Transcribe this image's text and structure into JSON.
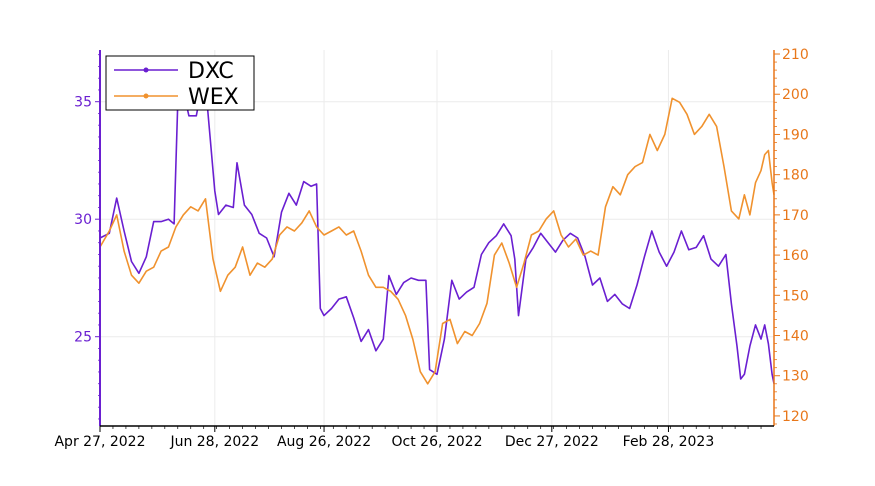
{
  "chart_data": {
    "type": "line",
    "title": "",
    "xlabel": "",
    "x_tick_labels": [
      "Apr 27, 2022",
      "Jun 28, 2022",
      "Aug 26, 2022",
      "Oct 26, 2022",
      "Dec 27, 2022",
      "Feb 28, 2023"
    ],
    "x_tick_dates": [
      "2022-04-27",
      "2022-06-28",
      "2022-08-26",
      "2022-10-26",
      "2022-12-27",
      "2023-02-28"
    ],
    "x_range": [
      "2022-04-27",
      "2023-04-26"
    ],
    "y_left": {
      "label": "",
      "lim": [
        21.2,
        37.2
      ],
      "ticks": [
        25,
        30,
        35
      ],
      "color": "#6a1fd1"
    },
    "y_right": {
      "label": "",
      "lim": [
        117.5,
        211
      ],
      "ticks": [
        120,
        130,
        140,
        150,
        160,
        170,
        180,
        190,
        200,
        210
      ],
      "color": "#e8771a"
    },
    "grid": true,
    "legend_position": "top-left",
    "series": [
      {
        "name": "DXC",
        "axis": "left",
        "color": "#6a1fd1",
        "points": [
          [
            "2022-04-27",
            29.2
          ],
          [
            "2022-05-02",
            29.4
          ],
          [
            "2022-05-06",
            30.9
          ],
          [
            "2022-05-10",
            29.5
          ],
          [
            "2022-05-14",
            28.2
          ],
          [
            "2022-05-18",
            27.7
          ],
          [
            "2022-05-22",
            28.4
          ],
          [
            "2022-05-26",
            29.9
          ],
          [
            "2022-05-30",
            29.9
          ],
          [
            "2022-06-03",
            30.0
          ],
          [
            "2022-06-06",
            29.8
          ],
          [
            "2022-06-08",
            35.0
          ],
          [
            "2022-06-10",
            35.8
          ],
          [
            "2022-06-14",
            34.4
          ],
          [
            "2022-06-18",
            34.4
          ],
          [
            "2022-06-21",
            35.6
          ],
          [
            "2022-06-24",
            34.8
          ],
          [
            "2022-06-28",
            31.2
          ],
          [
            "2022-06-30",
            30.2
          ],
          [
            "2022-07-04",
            30.6
          ],
          [
            "2022-07-08",
            30.5
          ],
          [
            "2022-07-10",
            32.4
          ],
          [
            "2022-07-14",
            30.6
          ],
          [
            "2022-07-18",
            30.2
          ],
          [
            "2022-07-22",
            29.4
          ],
          [
            "2022-07-26",
            29.2
          ],
          [
            "2022-07-30",
            28.4
          ],
          [
            "2022-08-03",
            30.3
          ],
          [
            "2022-08-07",
            31.1
          ],
          [
            "2022-08-11",
            30.6
          ],
          [
            "2022-08-15",
            31.6
          ],
          [
            "2022-08-19",
            31.4
          ],
          [
            "2022-08-22",
            31.5
          ],
          [
            "2022-08-24",
            26.2
          ],
          [
            "2022-08-26",
            25.9
          ],
          [
            "2022-08-30",
            26.2
          ],
          [
            "2022-09-03",
            26.6
          ],
          [
            "2022-09-07",
            26.7
          ],
          [
            "2022-09-11",
            25.8
          ],
          [
            "2022-09-15",
            24.8
          ],
          [
            "2022-09-19",
            25.3
          ],
          [
            "2022-09-23",
            24.4
          ],
          [
            "2022-09-27",
            24.9
          ],
          [
            "2022-09-30",
            27.6
          ],
          [
            "2022-10-04",
            26.8
          ],
          [
            "2022-10-08",
            27.3
          ],
          [
            "2022-10-12",
            27.5
          ],
          [
            "2022-10-16",
            27.4
          ],
          [
            "2022-10-20",
            27.4
          ],
          [
            "2022-10-22",
            23.6
          ],
          [
            "2022-10-26",
            23.4
          ],
          [
            "2022-10-30",
            24.9
          ],
          [
            "2022-11-03",
            27.4
          ],
          [
            "2022-11-07",
            26.6
          ],
          [
            "2022-11-11",
            26.9
          ],
          [
            "2022-11-15",
            27.1
          ],
          [
            "2022-11-19",
            28.5
          ],
          [
            "2022-11-23",
            29.0
          ],
          [
            "2022-11-27",
            29.3
          ],
          [
            "2022-12-01",
            29.8
          ],
          [
            "2022-12-05",
            29.3
          ],
          [
            "2022-12-07",
            28.3
          ],
          [
            "2022-12-09",
            25.9
          ],
          [
            "2022-12-13",
            28.3
          ],
          [
            "2022-12-17",
            28.8
          ],
          [
            "2022-12-21",
            29.4
          ],
          [
            "2022-12-25",
            29.0
          ],
          [
            "2022-12-29",
            28.6
          ],
          [
            "2023-01-02",
            29.1
          ],
          [
            "2023-01-06",
            29.4
          ],
          [
            "2023-01-10",
            29.2
          ],
          [
            "2023-01-14",
            28.4
          ],
          [
            "2023-01-18",
            27.2
          ],
          [
            "2023-01-22",
            27.5
          ],
          [
            "2023-01-26",
            26.5
          ],
          [
            "2023-01-30",
            26.8
          ],
          [
            "2023-02-03",
            26.4
          ],
          [
            "2023-02-07",
            26.2
          ],
          [
            "2023-02-11",
            27.2
          ],
          [
            "2023-02-15",
            28.4
          ],
          [
            "2023-02-19",
            29.5
          ],
          [
            "2023-02-23",
            28.6
          ],
          [
            "2023-02-27",
            28.0
          ],
          [
            "2023-03-03",
            28.6
          ],
          [
            "2023-03-07",
            29.5
          ],
          [
            "2023-03-11",
            28.7
          ],
          [
            "2023-03-15",
            28.8
          ],
          [
            "2023-03-19",
            29.3
          ],
          [
            "2023-03-23",
            28.3
          ],
          [
            "2023-03-27",
            28.0
          ],
          [
            "2023-03-31",
            28.5
          ],
          [
            "2023-04-03",
            26.4
          ],
          [
            "2023-04-06",
            24.6
          ],
          [
            "2023-04-08",
            23.2
          ],
          [
            "2023-04-10",
            23.4
          ],
          [
            "2023-04-13",
            24.6
          ],
          [
            "2023-04-16",
            25.5
          ],
          [
            "2023-04-19",
            24.9
          ],
          [
            "2023-04-21",
            25.5
          ],
          [
            "2023-04-23",
            24.7
          ],
          [
            "2023-04-25",
            23.4
          ],
          [
            "2023-04-26",
            23.0
          ]
        ]
      },
      {
        "name": "WEX",
        "axis": "right",
        "color": "#f0922e",
        "points": [
          [
            "2022-04-27",
            162.0
          ],
          [
            "2022-05-02",
            166.0
          ],
          [
            "2022-05-06",
            170.0
          ],
          [
            "2022-05-10",
            161.0
          ],
          [
            "2022-05-14",
            155.0
          ],
          [
            "2022-05-18",
            153.0
          ],
          [
            "2022-05-22",
            156.0
          ],
          [
            "2022-05-26",
            157.0
          ],
          [
            "2022-05-30",
            161.0
          ],
          [
            "2022-06-03",
            162.0
          ],
          [
            "2022-06-07",
            167.0
          ],
          [
            "2022-06-11",
            170.0
          ],
          [
            "2022-06-15",
            172.0
          ],
          [
            "2022-06-19",
            171.0
          ],
          [
            "2022-06-23",
            174.0
          ],
          [
            "2022-06-27",
            159.0
          ],
          [
            "2022-07-01",
            151.0
          ],
          [
            "2022-07-05",
            155.0
          ],
          [
            "2022-07-09",
            157.0
          ],
          [
            "2022-07-13",
            162.0
          ],
          [
            "2022-07-17",
            155.0
          ],
          [
            "2022-07-21",
            158.0
          ],
          [
            "2022-07-25",
            157.0
          ],
          [
            "2022-07-29",
            159.0
          ],
          [
            "2022-08-02",
            165.0
          ],
          [
            "2022-08-06",
            167.0
          ],
          [
            "2022-08-10",
            166.0
          ],
          [
            "2022-08-14",
            168.0
          ],
          [
            "2022-08-18",
            171.0
          ],
          [
            "2022-08-22",
            167.0
          ],
          [
            "2022-08-26",
            165.0
          ],
          [
            "2022-08-30",
            166.0
          ],
          [
            "2022-09-03",
            167.0
          ],
          [
            "2022-09-07",
            165.0
          ],
          [
            "2022-09-11",
            166.0
          ],
          [
            "2022-09-15",
            161.0
          ],
          [
            "2022-09-19",
            155.0
          ],
          [
            "2022-09-23",
            152.0
          ],
          [
            "2022-09-27",
            152.0
          ],
          [
            "2022-10-01",
            151.0
          ],
          [
            "2022-10-05",
            149.0
          ],
          [
            "2022-10-09",
            145.0
          ],
          [
            "2022-10-13",
            139.0
          ],
          [
            "2022-10-17",
            131.0
          ],
          [
            "2022-10-21",
            128.0
          ],
          [
            "2022-10-25",
            131.0
          ],
          [
            "2022-10-29",
            143.0
          ],
          [
            "2022-11-02",
            144.0
          ],
          [
            "2022-11-06",
            138.0
          ],
          [
            "2022-11-10",
            141.0
          ],
          [
            "2022-11-14",
            140.0
          ],
          [
            "2022-11-18",
            143.0
          ],
          [
            "2022-11-22",
            148.0
          ],
          [
            "2022-11-26",
            160.0
          ],
          [
            "2022-11-30",
            163.0
          ],
          [
            "2022-12-04",
            158.0
          ],
          [
            "2022-12-08",
            152.0
          ],
          [
            "2022-12-12",
            158.0
          ],
          [
            "2022-12-16",
            165.0
          ],
          [
            "2022-12-20",
            166.0
          ],
          [
            "2022-12-24",
            169.0
          ],
          [
            "2022-12-28",
            171.0
          ],
          [
            "2023-01-01",
            165.0
          ],
          [
            "2023-01-05",
            162.0
          ],
          [
            "2023-01-09",
            164.0
          ],
          [
            "2023-01-13",
            160.0
          ],
          [
            "2023-01-17",
            161.0
          ],
          [
            "2023-01-21",
            160.0
          ],
          [
            "2023-01-25",
            172.0
          ],
          [
            "2023-01-29",
            177.0
          ],
          [
            "2023-02-02",
            175.0
          ],
          [
            "2023-02-06",
            180.0
          ],
          [
            "2023-02-10",
            182.0
          ],
          [
            "2023-02-14",
            183.0
          ],
          [
            "2023-02-18",
            190.0
          ],
          [
            "2023-02-22",
            186.0
          ],
          [
            "2023-02-26",
            190.0
          ],
          [
            "2023-03-02",
            199.0
          ],
          [
            "2023-03-06",
            198.0
          ],
          [
            "2023-03-10",
            195.0
          ],
          [
            "2023-03-14",
            190.0
          ],
          [
            "2023-03-18",
            192.0
          ],
          [
            "2023-03-22",
            195.0
          ],
          [
            "2023-03-26",
            192.0
          ],
          [
            "2023-03-30",
            182.0
          ],
          [
            "2023-04-03",
            171.0
          ],
          [
            "2023-04-07",
            169.0
          ],
          [
            "2023-04-10",
            175.0
          ],
          [
            "2023-04-13",
            170.0
          ],
          [
            "2023-04-16",
            178.0
          ],
          [
            "2023-04-19",
            181.0
          ],
          [
            "2023-04-21",
            185.0
          ],
          [
            "2023-04-23",
            186.0
          ],
          [
            "2023-04-25",
            178.0
          ],
          [
            "2023-04-26",
            175.0
          ]
        ]
      }
    ]
  }
}
